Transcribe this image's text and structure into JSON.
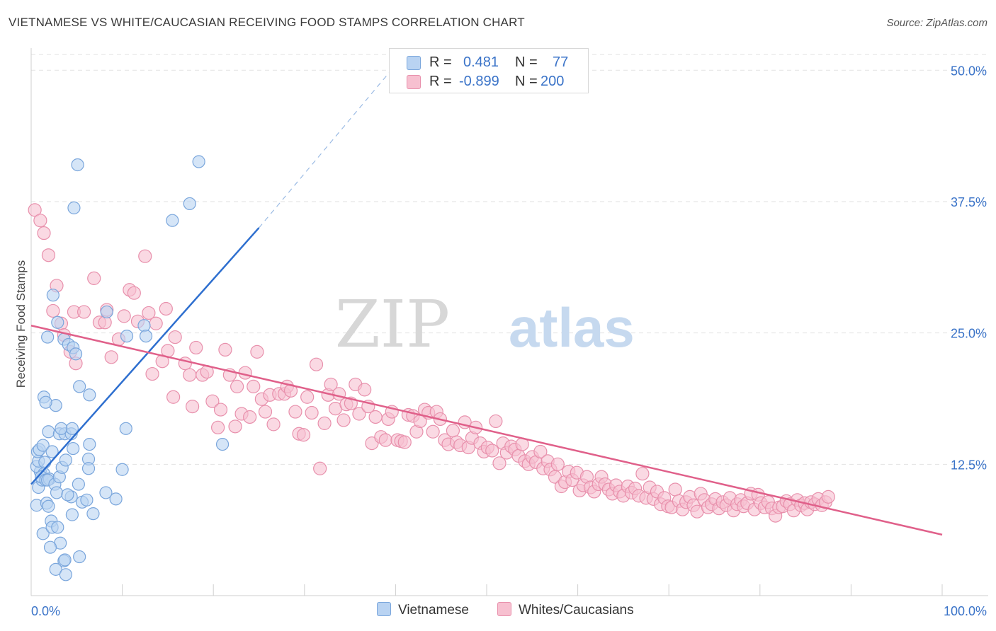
{
  "header": {
    "title": "VIETNAMESE VS WHITE/CAUCASIAN RECEIVING FOOD STAMPS CORRELATION CHART",
    "source": "Source: ZipAtlas.com"
  },
  "legend_top": {
    "rows": [
      {
        "r_label": "R =",
        "r_value": "0.481",
        "n_label": "N =",
        "n_value": "77"
      },
      {
        "r_label": "R =",
        "r_value": "-0.899",
        "n_label": "N =",
        "n_value": "200"
      }
    ]
  },
  "legend_bottom": {
    "series": [
      {
        "label": "Vietnamese"
      },
      {
        "label": "Whites/Caucasians"
      }
    ]
  },
  "watermark": {
    "zip": "ZIP",
    "atlas": "atlas"
  },
  "colors": {
    "blue_fill": "#b9d3f2",
    "blue_stroke": "#7aa6dc",
    "blue_line": "#2e6fcf",
    "pink_fill": "#f7c0d0",
    "pink_stroke": "#e890ac",
    "pink_line": "#e0608a",
    "tick_label": "#3a73c8",
    "grid": "#e2e2e2"
  },
  "chart_data": {
    "type": "scatter",
    "title": "VIETNAMESE VS WHITE/CAUCASIAN RECEIVING FOOD STAMPS CORRELATION CHART",
    "xlabel": "",
    "ylabel": "Receiving Food Stamps",
    "xlim": [
      0,
      100
    ],
    "ylim": [
      0,
      51.5
    ],
    "x_tick_labels": [
      "0.0%",
      "100.0%"
    ],
    "y_ticks": [
      12.5,
      25.0,
      37.5,
      50.0
    ],
    "y_tick_labels": [
      "12.5%",
      "25.0%",
      "37.5%",
      "50.0%"
    ],
    "grid": true,
    "legend_position": "top-center",
    "series": [
      {
        "name": "Vietnamese",
        "R": 0.481,
        "N": 77,
        "trend": {
          "x": [
            0.0,
            25.0
          ],
          "y": [
            10.6,
            35.0
          ],
          "dashed_to": [
            40.0,
            50.5
          ]
        },
        "points": [
          [
            0.8,
            10.3
          ],
          [
            1.0,
            11.8
          ],
          [
            1.2,
            11.0
          ],
          [
            0.6,
            12.3
          ],
          [
            0.8,
            12.8
          ],
          [
            1.4,
            11.6
          ],
          [
            1.1,
            11.3
          ],
          [
            1.6,
            11.0
          ],
          [
            2.0,
            11.1
          ],
          [
            1.8,
            11.0
          ],
          [
            0.7,
            13.7
          ],
          [
            0.9,
            13.9
          ],
          [
            1.3,
            14.3
          ],
          [
            2.3,
            13.7
          ],
          [
            1.5,
            12.7
          ],
          [
            1.9,
            15.6
          ],
          [
            2.6,
            10.6
          ],
          [
            2.8,
            9.8
          ],
          [
            3.1,
            11.3
          ],
          [
            3.4,
            12.2
          ],
          [
            2.4,
            28.6
          ],
          [
            2.9,
            26.0
          ],
          [
            1.8,
            24.6
          ],
          [
            3.6,
            24.4
          ],
          [
            4.1,
            23.9
          ],
          [
            4.6,
            23.6
          ],
          [
            4.9,
            23.0
          ],
          [
            1.4,
            18.9
          ],
          [
            2.7,
            18.1
          ],
          [
            1.6,
            18.4
          ],
          [
            3.1,
            15.4
          ],
          [
            3.7,
            15.4
          ],
          [
            4.4,
            15.4
          ],
          [
            3.3,
            15.9
          ],
          [
            4.5,
            15.9
          ],
          [
            3.8,
            12.9
          ],
          [
            4.6,
            14.0
          ],
          [
            5.2,
            10.6
          ],
          [
            6.3,
            13.0
          ],
          [
            6.4,
            14.4
          ],
          [
            6.3,
            12.1
          ],
          [
            5.6,
            8.9
          ],
          [
            6.1,
            9.1
          ],
          [
            4.4,
            9.4
          ],
          [
            4.0,
            9.6
          ],
          [
            0.6,
            8.6
          ],
          [
            1.7,
            8.8
          ],
          [
            1.9,
            8.5
          ],
          [
            2.2,
            7.1
          ],
          [
            4.5,
            7.7
          ],
          [
            6.8,
            7.8
          ],
          [
            1.3,
            5.9
          ],
          [
            2.3,
            6.5
          ],
          [
            2.9,
            6.5
          ],
          [
            3.2,
            5.0
          ],
          [
            2.1,
            4.6
          ],
          [
            3.6,
            3.3
          ],
          [
            3.7,
            3.4
          ],
          [
            5.3,
            3.7
          ],
          [
            2.7,
            2.5
          ],
          [
            3.8,
            2.0
          ],
          [
            5.1,
            41.0
          ],
          [
            4.7,
            36.9
          ],
          [
            18.4,
            41.3
          ],
          [
            15.5,
            35.7
          ],
          [
            17.4,
            37.3
          ],
          [
            8.3,
            27.0
          ],
          [
            10.5,
            24.7
          ],
          [
            12.4,
            25.7
          ],
          [
            12.6,
            24.7
          ],
          [
            5.3,
            19.9
          ],
          [
            6.4,
            19.1
          ],
          [
            10.4,
            15.9
          ],
          [
            10.0,
            12.0
          ],
          [
            9.3,
            9.2
          ],
          [
            8.2,
            9.8
          ],
          [
            21.0,
            14.4
          ]
        ]
      },
      {
        "name": "Whites/Caucasians",
        "R": -0.899,
        "N": 200,
        "trend": {
          "x": [
            0.0,
            100.0
          ],
          "y": [
            25.7,
            5.8
          ]
        },
        "points": [
          [
            0.4,
            36.7
          ],
          [
            1.0,
            35.7
          ],
          [
            1.4,
            34.5
          ],
          [
            1.9,
            32.4
          ],
          [
            2.8,
            29.5
          ],
          [
            2.4,
            27.1
          ],
          [
            3.3,
            25.9
          ],
          [
            3.6,
            24.8
          ],
          [
            4.3,
            23.2
          ],
          [
            4.7,
            27.0
          ],
          [
            4.9,
            22.1
          ],
          [
            5.8,
            27.0
          ],
          [
            6.9,
            30.2
          ],
          [
            7.5,
            26.0
          ],
          [
            8.1,
            26.0
          ],
          [
            8.3,
            27.2
          ],
          [
            8.8,
            22.7
          ],
          [
            9.6,
            24.4
          ],
          [
            10.2,
            26.6
          ],
          [
            10.8,
            29.1
          ],
          [
            11.3,
            28.8
          ],
          [
            11.7,
            26.1
          ],
          [
            12.5,
            32.3
          ],
          [
            12.9,
            26.9
          ],
          [
            13.3,
            21.1
          ],
          [
            13.7,
            25.9
          ],
          [
            14.4,
            22.3
          ],
          [
            14.8,
            27.3
          ],
          [
            15.0,
            23.3
          ],
          [
            15.8,
            24.6
          ],
          [
            15.6,
            18.9
          ],
          [
            16.9,
            22.1
          ],
          [
            17.4,
            21.0
          ],
          [
            17.7,
            18.0
          ],
          [
            18.1,
            23.6
          ],
          [
            18.8,
            21.0
          ],
          [
            19.3,
            21.3
          ],
          [
            19.9,
            18.5
          ],
          [
            20.5,
            16.0
          ],
          [
            20.8,
            17.7
          ],
          [
            21.3,
            23.4
          ],
          [
            21.8,
            21.0
          ],
          [
            22.4,
            16.1
          ],
          [
            22.6,
            19.9
          ],
          [
            23.1,
            17.3
          ],
          [
            23.5,
            21.2
          ],
          [
            24.0,
            17.0
          ],
          [
            24.4,
            19.9
          ],
          [
            24.8,
            23.2
          ],
          [
            25.3,
            18.7
          ],
          [
            25.7,
            17.5
          ],
          [
            26.2,
            19.1
          ],
          [
            26.6,
            16.3
          ],
          [
            27.2,
            19.2
          ],
          [
            27.8,
            19.2
          ],
          [
            28.1,
            19.9
          ],
          [
            28.5,
            19.5
          ],
          [
            29.0,
            17.5
          ],
          [
            29.4,
            15.4
          ],
          [
            29.9,
            15.3
          ],
          [
            30.3,
            18.9
          ],
          [
            30.8,
            17.4
          ],
          [
            31.3,
            22.0
          ],
          [
            31.7,
            12.1
          ],
          [
            32.2,
            16.4
          ],
          [
            32.6,
            19.1
          ],
          [
            32.9,
            20.1
          ],
          [
            33.4,
            17.8
          ],
          [
            33.8,
            19.2
          ],
          [
            34.3,
            16.7
          ],
          [
            34.6,
            18.2
          ],
          [
            35.1,
            18.3
          ],
          [
            35.6,
            20.1
          ],
          [
            36.0,
            17.3
          ],
          [
            36.6,
            19.6
          ],
          [
            37.0,
            18.0
          ],
          [
            37.4,
            14.5
          ],
          [
            37.8,
            17.0
          ],
          [
            38.4,
            15.1
          ],
          [
            38.9,
            14.8
          ],
          [
            39.2,
            16.8
          ],
          [
            39.6,
            17.5
          ],
          [
            40.2,
            14.8
          ],
          [
            40.6,
            14.7
          ],
          [
            41.0,
            14.6
          ],
          [
            41.4,
            17.2
          ],
          [
            41.9,
            17.1
          ],
          [
            42.3,
            15.6
          ],
          [
            42.7,
            16.6
          ],
          [
            43.2,
            17.7
          ],
          [
            43.6,
            17.4
          ],
          [
            44.1,
            15.6
          ],
          [
            44.5,
            17.5
          ],
          [
            44.9,
            16.8
          ],
          [
            45.4,
            14.8
          ],
          [
            45.8,
            14.4
          ],
          [
            46.3,
            15.7
          ],
          [
            46.7,
            14.6
          ],
          [
            47.1,
            14.3
          ],
          [
            47.6,
            16.5
          ],
          [
            48.0,
            14.1
          ],
          [
            48.4,
            15.0
          ],
          [
            48.8,
            16.0
          ],
          [
            49.3,
            14.5
          ],
          [
            49.7,
            13.7
          ],
          [
            50.1,
            14.1
          ],
          [
            50.6,
            13.8
          ],
          [
            51.0,
            16.6
          ],
          [
            51.4,
            12.6
          ],
          [
            51.8,
            14.5
          ],
          [
            52.2,
            13.6
          ],
          [
            52.7,
            14.2
          ],
          [
            53.1,
            13.9
          ],
          [
            53.5,
            13.3
          ],
          [
            53.9,
            14.4
          ],
          [
            54.2,
            12.8
          ],
          [
            54.6,
            12.5
          ],
          [
            55.0,
            13.2
          ],
          [
            55.4,
            12.7
          ],
          [
            55.9,
            13.7
          ],
          [
            56.2,
            12.1
          ],
          [
            56.7,
            12.8
          ],
          [
            57.0,
            12.0
          ],
          [
            57.5,
            11.3
          ],
          [
            57.8,
            12.5
          ],
          [
            58.2,
            10.4
          ],
          [
            58.6,
            10.8
          ],
          [
            59.0,
            11.8
          ],
          [
            59.4,
            11.0
          ],
          [
            59.9,
            11.7
          ],
          [
            60.2,
            10.0
          ],
          [
            60.6,
            10.5
          ],
          [
            61.0,
            11.3
          ],
          [
            61.4,
            10.3
          ],
          [
            61.8,
            9.9
          ],
          [
            62.3,
            10.6
          ],
          [
            62.6,
            11.3
          ],
          [
            63.0,
            10.6
          ],
          [
            63.4,
            10.1
          ],
          [
            63.8,
            9.7
          ],
          [
            64.2,
            10.5
          ],
          [
            64.6,
            9.9
          ],
          [
            65.0,
            9.5
          ],
          [
            65.5,
            10.4
          ],
          [
            65.9,
            9.8
          ],
          [
            66.3,
            10.2
          ],
          [
            66.7,
            9.5
          ],
          [
            67.1,
            11.6
          ],
          [
            67.5,
            9.3
          ],
          [
            67.9,
            10.3
          ],
          [
            68.3,
            9.2
          ],
          [
            68.7,
            9.9
          ],
          [
            69.1,
            8.7
          ],
          [
            69.5,
            9.3
          ],
          [
            69.9,
            8.5
          ],
          [
            70.3,
            8.4
          ],
          [
            70.7,
            10.1
          ],
          [
            71.1,
            9.0
          ],
          [
            71.5,
            8.2
          ],
          [
            71.9,
            8.9
          ],
          [
            72.3,
            9.4
          ],
          [
            72.7,
            8.6
          ],
          [
            73.1,
            8.0
          ],
          [
            73.5,
            9.7
          ],
          [
            73.9,
            9.1
          ],
          [
            74.3,
            8.4
          ],
          [
            74.7,
            8.7
          ],
          [
            75.1,
            9.2
          ],
          [
            75.5,
            8.3
          ],
          [
            75.9,
            8.9
          ],
          [
            76.3,
            8.6
          ],
          [
            76.7,
            9.3
          ],
          [
            77.1,
            8.1
          ],
          [
            77.5,
            8.7
          ],
          [
            77.9,
            9.1
          ],
          [
            78.2,
            8.5
          ],
          [
            78.6,
            8.8
          ],
          [
            79.0,
            9.7
          ],
          [
            79.4,
            8.2
          ],
          [
            79.8,
            9.6
          ],
          [
            80.1,
            8.8
          ],
          [
            80.5,
            8.4
          ],
          [
            80.9,
            8.9
          ],
          [
            81.3,
            8.3
          ],
          [
            81.7,
            7.6
          ],
          [
            82.1,
            8.4
          ],
          [
            82.5,
            8.5
          ],
          [
            82.9,
            9.0
          ],
          [
            83.3,
            8.7
          ],
          [
            83.7,
            8.1
          ],
          [
            84.1,
            9.1
          ],
          [
            84.5,
            8.6
          ],
          [
            84.9,
            8.8
          ],
          [
            85.2,
            8.2
          ],
          [
            85.6,
            8.9
          ],
          [
            86.0,
            8.7
          ],
          [
            86.4,
            9.2
          ],
          [
            86.8,
            8.6
          ],
          [
            87.2,
            8.9
          ],
          [
            87.5,
            9.4
          ]
        ]
      }
    ]
  }
}
